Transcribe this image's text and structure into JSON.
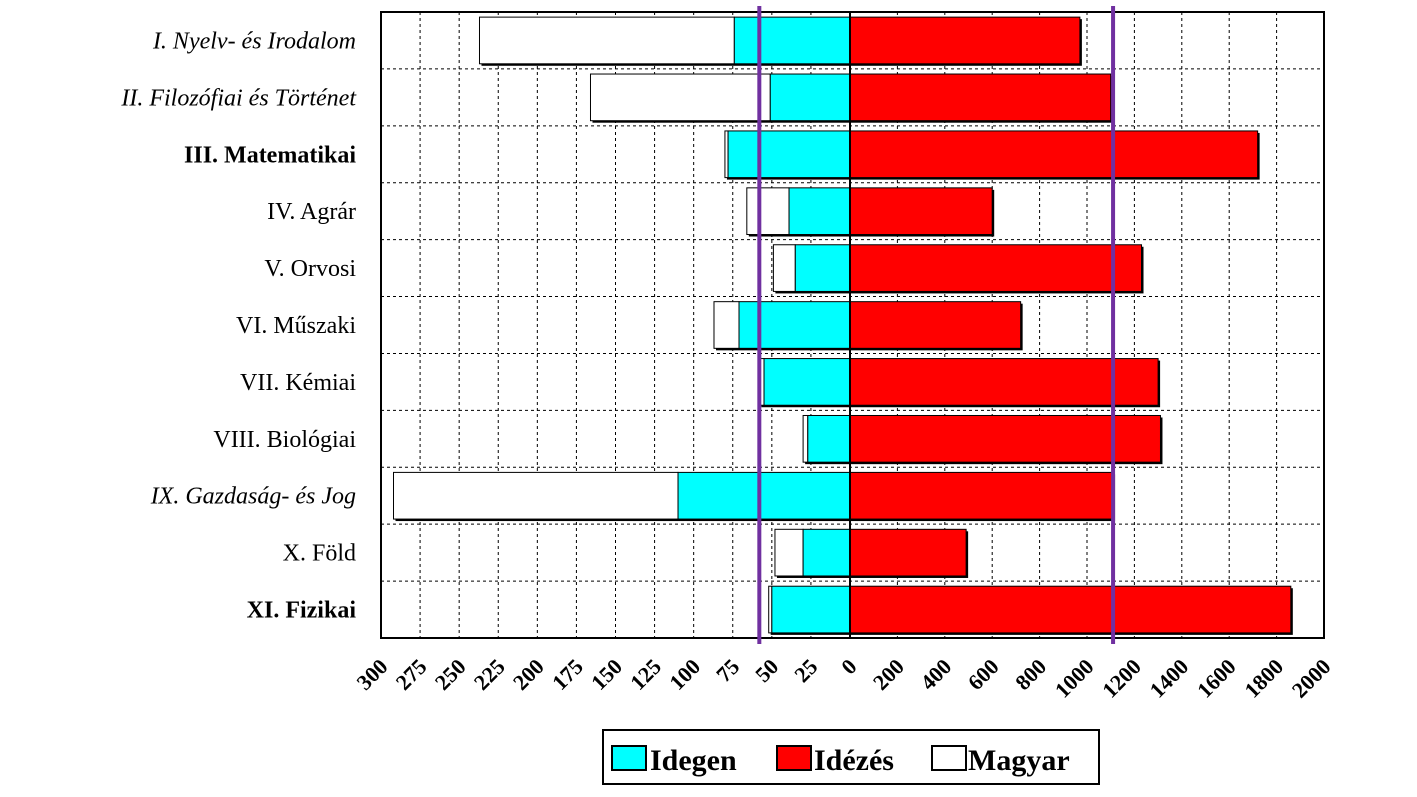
{
  "chart_data": {
    "type": "bar",
    "orientation": "horizontal",
    "layout": "butterfly (left and right panels share category rows)",
    "categories": [
      {
        "label": "I. Nyelv- és Irodalom",
        "style": "italic"
      },
      {
        "label": "II. Filozófiai és Történet",
        "style": "italic"
      },
      {
        "label": "III. Matematikai",
        "style": "bold"
      },
      {
        "label": "IV. Agrár",
        "style": "normal"
      },
      {
        "label": "V. Orvosi",
        "style": "normal"
      },
      {
        "label": "VI. Műszaki",
        "style": "normal"
      },
      {
        "label": "VII. Kémiai",
        "style": "normal"
      },
      {
        "label": "VIII. Biológiai",
        "style": "normal"
      },
      {
        "label": "IX. Gazdaság- és Jog",
        "style": "italic"
      },
      {
        "label": "X. Föld",
        "style": "normal"
      },
      {
        "label": "XI. Fizikai",
        "style": "bold"
      }
    ],
    "left_panel": {
      "direction": "extends leftwards from 0",
      "xlim": [
        0,
        300
      ],
      "ticks": [
        "300",
        "275",
        "250",
        "225",
        "200",
        "175",
        "150",
        "125",
        "100",
        "75",
        "50",
        "25",
        "0"
      ],
      "series": [
        {
          "name": "Idegen",
          "color": "#00ffff",
          "values": [
            74,
            51,
            78,
            39,
            35,
            71,
            55,
            27,
            110,
            30,
            50
          ]
        },
        {
          "name": "Magyar",
          "color": "#ffffff",
          "values": [
            163,
            115,
            2,
            27,
            14,
            16,
            3,
            3,
            182,
            18,
            2
          ]
        }
      ],
      "reference_line": 58
    },
    "right_panel": {
      "direction": "extends rightwards from 0",
      "xlim": [
        0,
        2000
      ],
      "ticks": [
        "0",
        "200",
        "400",
        "600",
        "800",
        "1000",
        "1200",
        "1400",
        "1600",
        "1800",
        "2000"
      ],
      "series": [
        {
          "name": "Idézés",
          "color": "#ff0000",
          "values": [
            970,
            1100,
            1720,
            600,
            1230,
            720,
            1300,
            1310,
            1110,
            490,
            1860
          ]
        }
      ],
      "reference_line": 1110
    },
    "legend": {
      "position": "bottom",
      "items": [
        {
          "name": "Idegen",
          "color": "#00ffff"
        },
        {
          "name": "Idézés",
          "color": "#ff0000"
        },
        {
          "name": "Magyar",
          "color": "#ffffff"
        }
      ]
    },
    "reference_line_color": "#7030a0",
    "grid": "dotted",
    "title": "",
    "xlabel": "",
    "ylabel": ""
  }
}
